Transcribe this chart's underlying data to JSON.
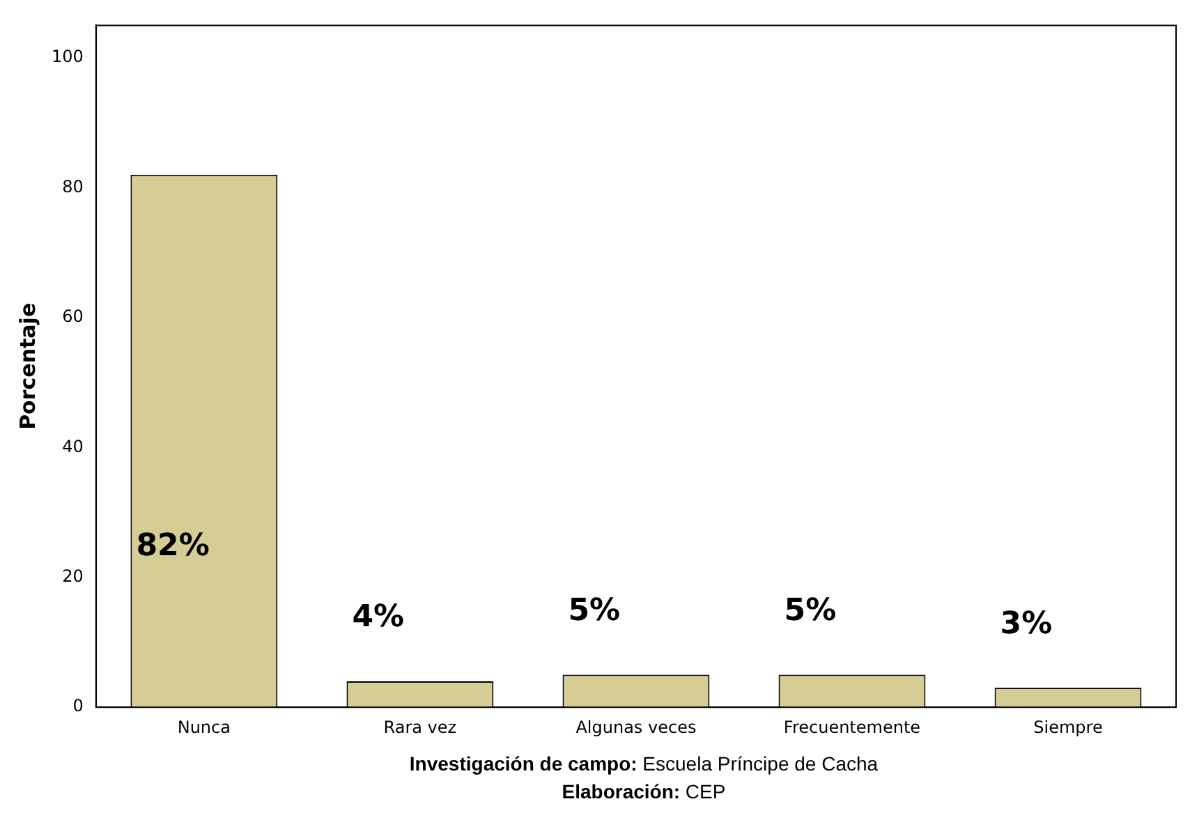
{
  "chart_data": {
    "type": "bar",
    "ylabel": "Porcentaje",
    "categories": [
      "Nunca",
      "Rara vez",
      "Algunas veces",
      "Frecuentemente",
      "Siempre"
    ],
    "values": [
      82,
      4,
      5,
      5,
      3
    ],
    "value_labels": [
      "82%",
      "4%",
      "5%",
      "5%",
      "3%"
    ],
    "color": "#d5cd95",
    "ylim": [
      0,
      105
    ],
    "yticks": [
      0,
      20,
      40,
      60,
      80,
      100
    ],
    "grid": false,
    "legend": false,
    "annotations": [
      "Investigación de campo: Escuela Príncipe de Cacha",
      "Elaboración: CEP"
    ]
  }
}
